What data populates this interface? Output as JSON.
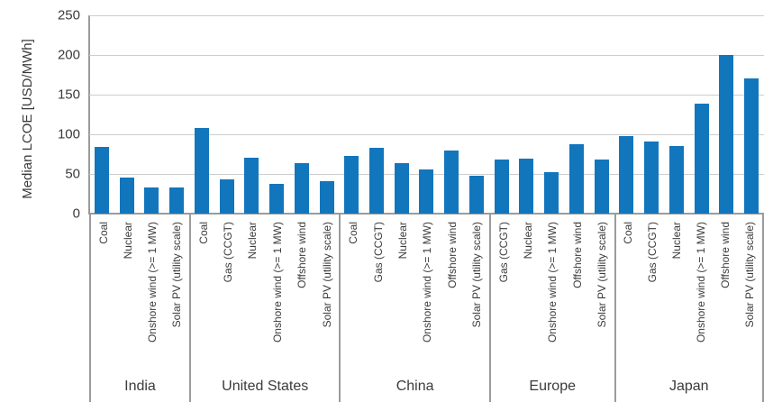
{
  "chart_data": {
    "type": "bar",
    "title": "",
    "ylabel": "Median LCOE [USD/MWh]",
    "xlabel": "",
    "ylim": [
      0,
      250
    ],
    "yticks": [
      0,
      50,
      100,
      150,
      200,
      250
    ],
    "grid": true,
    "legend_position": "none",
    "bar_color": "#1276bd",
    "gridline_color": "#cdcdcd",
    "axis_color": "#9b9b9b",
    "text_color": "#3b3b3b",
    "groups": [
      {
        "country": "India",
        "bars": [
          {
            "label": "Coal",
            "value": 84
          },
          {
            "label": "Nuclear",
            "value": 46
          },
          {
            "label": "Onshore wind (>= 1 MW)",
            "value": 33
          },
          {
            "label": "Solar PV (utility scale)",
            "value": 33
          }
        ]
      },
      {
        "country": "United States",
        "bars": [
          {
            "label": "Coal",
            "value": 108
          },
          {
            "label": "Gas (CCGT)",
            "value": 43
          },
          {
            "label": "Nuclear",
            "value": 70
          },
          {
            "label": "Onshore wind (>= 1 MW)",
            "value": 37
          },
          {
            "label": "Offshore wind",
            "value": 64
          },
          {
            "label": "Solar PV (utility scale)",
            "value": 41
          }
        ]
      },
      {
        "country": "China",
        "bars": [
          {
            "label": "Coal",
            "value": 73
          },
          {
            "label": "Gas (CCGT)",
            "value": 83
          },
          {
            "label": "Nuclear",
            "value": 64
          },
          {
            "label": "Onshore wind (>= 1 MW)",
            "value": 56
          },
          {
            "label": "Offshore wind",
            "value": 80
          },
          {
            "label": "Solar PV (utility scale)",
            "value": 48
          }
        ]
      },
      {
        "country": "Europe",
        "bars": [
          {
            "label": "Gas (CCGT)",
            "value": 68
          },
          {
            "label": "Nuclear",
            "value": 69
          },
          {
            "label": "Onshore wind (>= 1 MW)",
            "value": 52
          },
          {
            "label": "Offshore wind",
            "value": 87
          },
          {
            "label": "Solar PV (utility scale)",
            "value": 68
          }
        ]
      },
      {
        "country": "Japan",
        "bars": [
          {
            "label": "Coal",
            "value": 98
          },
          {
            "label": "Gas (CCGT)",
            "value": 91
          },
          {
            "label": "Nuclear",
            "value": 85
          },
          {
            "label": "Onshore wind (>= 1 MW)",
            "value": 139
          },
          {
            "label": "Offshore wind",
            "value": 200
          },
          {
            "label": "Solar PV (utility scale)",
            "value": 171
          }
        ]
      }
    ]
  }
}
